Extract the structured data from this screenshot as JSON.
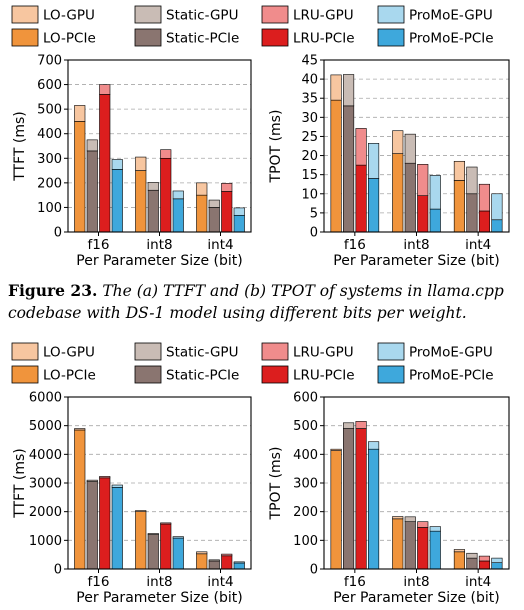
{
  "caption": {
    "label": "Figure 23.",
    "text": "The (a) TTFT and (b) TPOT of systems in llama.cpp codebase with DS-1 model using different bits per weight."
  },
  "legend": {
    "entries": [
      {
        "label": "LO-GPU",
        "color": "#f7c6a0"
      },
      {
        "label": "Static-GPU",
        "color": "#c9bcb5"
      },
      {
        "label": "LRU-GPU",
        "color": "#f08c8c"
      },
      {
        "label": "ProMoE-GPU",
        "color": "#a9d8ee"
      },
      {
        "label": "LO-PCIe",
        "color": "#f0943c"
      },
      {
        "label": "Static-PCIe",
        "color": "#8a7570"
      },
      {
        "label": "LRU-PCIe",
        "color": "#dc1e1e"
      },
      {
        "label": "ProMoE-PCIe",
        "color": "#3ea8dc"
      }
    ]
  },
  "chart_data": [
    {
      "type": "bar",
      "stacked": true,
      "categories": [
        "f16",
        "int8",
        "int4"
      ],
      "xlabel": "Per Parameter Size (bit)",
      "ylabel": "TTFT (ms)",
      "ylim": [
        0,
        700
      ],
      "yticks": [
        0,
        100,
        200,
        300,
        400,
        500,
        600,
        700
      ],
      "grid": true,
      "series": [
        {
          "name": "LO",
          "pcie": [
            450,
            250,
            150
          ],
          "gpu": [
            65,
            55,
            50
          ]
        },
        {
          "name": "Static",
          "pcie": [
            330,
            170,
            100
          ],
          "gpu": [
            45,
            32,
            30
          ]
        },
        {
          "name": "LRU",
          "pcie": [
            560,
            300,
            165
          ],
          "gpu": [
            40,
            35,
            33
          ]
        },
        {
          "name": "ProMoE",
          "pcie": [
            255,
            135,
            68
          ],
          "gpu": [
            40,
            32,
            30
          ]
        }
      ]
    },
    {
      "type": "bar",
      "stacked": true,
      "categories": [
        "f16",
        "int8",
        "int4"
      ],
      "xlabel": "Per Parameter Size (bit)",
      "ylabel": "TPOT (ms)",
      "ylim": [
        0,
        45
      ],
      "yticks": [
        0,
        5,
        10,
        15,
        20,
        25,
        30,
        35,
        40,
        45
      ],
      "grid": true,
      "series": [
        {
          "name": "LO",
          "pcie": [
            34.5,
            20.5,
            13.5
          ],
          "gpu": [
            6.6,
            6.0,
            5.0
          ]
        },
        {
          "name": "Static",
          "pcie": [
            33,
            18,
            10
          ],
          "gpu": [
            8.2,
            7.6,
            7.0
          ]
        },
        {
          "name": "LRU",
          "pcie": [
            17.5,
            9.5,
            5.5
          ],
          "gpu": [
            9.6,
            8.2,
            7.0
          ]
        },
        {
          "name": "ProMoE",
          "pcie": [
            14,
            6,
            3.2
          ],
          "gpu": [
            9.2,
            8.8,
            6.8
          ]
        }
      ]
    },
    {
      "type": "bar",
      "stacked": true,
      "categories": [
        "f16",
        "int8",
        "int4"
      ],
      "xlabel": "Per Parameter Size (bit)",
      "ylabel": "TTFT (ms)",
      "ylim": [
        0,
        6000
      ],
      "yticks": [
        0,
        1000,
        2000,
        3000,
        4000,
        5000,
        6000
      ],
      "grid": true,
      "series": [
        {
          "name": "LO",
          "pcie": [
            4850,
            2000,
            530
          ],
          "gpu": [
            50,
            40,
            70
          ]
        },
        {
          "name": "Static",
          "pcie": [
            3050,
            1200,
            280
          ],
          "gpu": [
            50,
            40,
            40
          ]
        },
        {
          "name": "LRU",
          "pcie": [
            3180,
            1570,
            460
          ],
          "gpu": [
            50,
            40,
            60
          ]
        },
        {
          "name": "ProMoE",
          "pcie": [
            2850,
            1080,
            210
          ],
          "gpu": [
            80,
            50,
            40
          ]
        }
      ]
    },
    {
      "type": "bar",
      "stacked": true,
      "categories": [
        "f16",
        "int8",
        "int4"
      ],
      "xlabel": "Per Parameter Size (bit)",
      "ylabel": "TPOT (ms)",
      "ylim": [
        0,
        600
      ],
      "yticks": [
        0,
        100,
        200,
        300,
        400,
        500,
        600
      ],
      "grid": true,
      "series": [
        {
          "name": "LO",
          "pcie": [
            413,
            175,
            60
          ],
          "gpu": [
            5,
            8,
            8
          ]
        },
        {
          "name": "Static",
          "pcie": [
            490,
            165,
            38
          ],
          "gpu": [
            20,
            17,
            17
          ]
        },
        {
          "name": "LRU",
          "pcie": [
            490,
            145,
            28
          ],
          "gpu": [
            25,
            20,
            17
          ]
        },
        {
          "name": "ProMoE",
          "pcie": [
            418,
            132,
            22
          ],
          "gpu": [
            26,
            16,
            16
          ]
        }
      ]
    }
  ]
}
